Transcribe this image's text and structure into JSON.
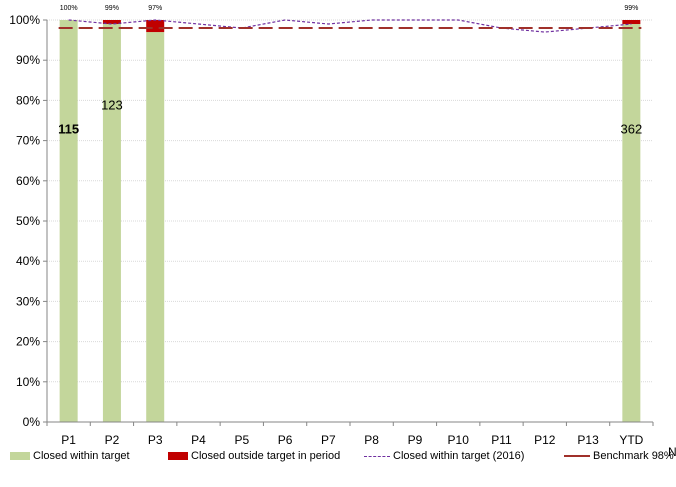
{
  "chart_data": {
    "type": "bar",
    "categories": [
      "P1",
      "P2",
      "P3",
      "P4",
      "P5",
      "P6",
      "P7",
      "P8",
      "P9",
      "P10",
      "P11",
      "P12",
      "P13",
      "YTD"
    ],
    "ylim": [
      0,
      100
    ],
    "y_ticks": [
      "0%",
      "10%",
      "20%",
      "30%",
      "40%",
      "50%",
      "60%",
      "70%",
      "80%",
      "90%",
      "100%"
    ],
    "grid": true,
    "legend_position": "bottom",
    "x_axis_cut_label": "N",
    "series": [
      {
        "name": "Closed within target",
        "kind": "bar",
        "color": "#c3d69b",
        "values": [
          100,
          99,
          97,
          null,
          null,
          null,
          null,
          null,
          null,
          null,
          null,
          null,
          null,
          99
        ],
        "top_labels": [
          "100%",
          "99%",
          "97%",
          null,
          null,
          null,
          null,
          null,
          null,
          null,
          null,
          null,
          null,
          "99%"
        ],
        "count_labels": [
          "115",
          "123",
          null,
          null,
          null,
          null,
          null,
          null,
          null,
          null,
          null,
          null,
          null,
          "362"
        ],
        "count_label_levels": [
          73,
          79,
          null,
          null,
          null,
          null,
          null,
          null,
          null,
          null,
          null,
          null,
          null,
          73
        ],
        "count_label_bold": [
          true,
          false,
          false,
          false,
          false,
          false,
          false,
          false,
          false,
          false,
          false,
          false,
          false,
          false
        ]
      },
      {
        "name": "Closed outside target in period",
        "kind": "bar",
        "color": "#c00000",
        "values": [
          0,
          1,
          3,
          null,
          null,
          null,
          null,
          null,
          null,
          null,
          null,
          null,
          null,
          1
        ]
      },
      {
        "name": "Closed within target (2016)",
        "kind": "line",
        "style": "dashed",
        "color": "#7030a0",
        "values": [
          100,
          99,
          100,
          99,
          98,
          100,
          99,
          100,
          100,
          100,
          98,
          97,
          98,
          99
        ]
      },
      {
        "name": "Benchmark 98%",
        "kind": "line",
        "style": "long-dash",
        "color": "#a0302a",
        "values": [
          98,
          98,
          98,
          98,
          98,
          98,
          98,
          98,
          98,
          98,
          98,
          98,
          98,
          98
        ]
      }
    ]
  }
}
